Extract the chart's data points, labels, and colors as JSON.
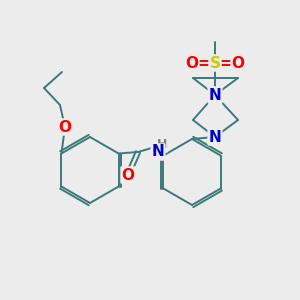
{
  "background_color": "#ececec",
  "bond_color": "#3a7a78",
  "atom_colors": {
    "O": "#ff0000",
    "N": "#0000cc",
    "S": "#cccc00",
    "H": "#808080",
    "C": "#000000"
  },
  "figsize": [
    3.0,
    3.0
  ],
  "dpi": 100
}
